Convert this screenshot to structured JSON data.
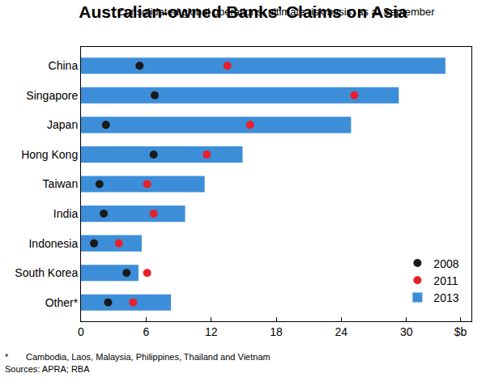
{
  "chart_data": {
    "type": "bar",
    "orientation": "horizontal",
    "title": "Australian-owned Banks’ Claims on Asia",
    "subtitle": "Consolidated global operations, ultimate risk basis, as at September",
    "categories": [
      "China",
      "Singapore",
      "Japan",
      "Hong Kong",
      "Taiwan",
      "India",
      "Indonesia",
      "South Korea",
      "Other*"
    ],
    "series": [
      {
        "name": "2008",
        "type": "scatter",
        "marker": "circle",
        "color": "#1a1a1a",
        "values": [
          5.4,
          6.8,
          2.3,
          6.7,
          1.7,
          2.1,
          1.2,
          4.2,
          2.5
        ]
      },
      {
        "name": "2011",
        "type": "scatter",
        "marker": "circle",
        "color": "#e8202a",
        "values": [
          13.5,
          25.2,
          15.6,
          11.6,
          6.1,
          6.7,
          3.5,
          6.1,
          4.8
        ]
      },
      {
        "name": "2013",
        "type": "bar",
        "color": "#3d8ed8",
        "values": [
          33.6,
          29.3,
          24.9,
          14.9,
          11.4,
          9.6,
          5.6,
          5.3,
          8.3
        ]
      }
    ],
    "xlim": [
      0,
      36
    ],
    "xticks": [
      0,
      6,
      12,
      18,
      24,
      30,
      {
        "value": 35,
        "label": "$b"
      }
    ],
    "grid": false,
    "legend": "bottom right",
    "footnote": {
      "marker": "*",
      "text": "Cambodia, Laos, Malaysia, Philippines, Thailand and Vietnam"
    },
    "sources": "Sources: APRA; RBA"
  }
}
